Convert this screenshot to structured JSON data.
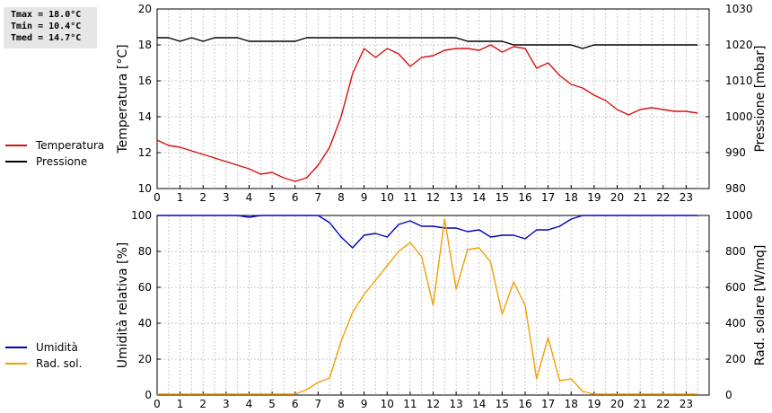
{
  "stats": {
    "tmax": "Tmax = 18.0°C",
    "tmin": "Tmin = 10.4°C",
    "tmed": "Tmed = 14.7°C"
  },
  "colors": {
    "red": "#d81010",
    "black": "#000000",
    "blue": "#0000c0",
    "orange": "#f0a000",
    "grid": "#c8c8c8"
  },
  "chart_data": [
    {
      "type": "line",
      "ylabel": "Temperatura [°C]",
      "y2label": "Pressione [mbar]",
      "xlim": [
        0,
        24
      ],
      "ylim": [
        10,
        20
      ],
      "y2lim": [
        980,
        1030
      ],
      "xticks": [
        0,
        1,
        2,
        3,
        4,
        5,
        6,
        7,
        8,
        9,
        10,
        11,
        12,
        13,
        14,
        15,
        16,
        17,
        18,
        19,
        20,
        21,
        22,
        23
      ],
      "yticks": [
        10,
        12,
        14,
        16,
        18,
        20
      ],
      "y2ticks": [
        980,
        990,
        1000,
        1010,
        1020,
        1030
      ],
      "grid": true,
      "legend": "left",
      "series": [
        {
          "name": "Temperatura",
          "color": "#d81010",
          "axis": "left",
          "x": [
            0,
            0.5,
            1,
            1.5,
            2,
            2.5,
            3,
            3.5,
            4,
            4.5,
            5,
            5.5,
            6,
            6.5,
            7,
            7.5,
            8,
            8.5,
            9,
            9.5,
            10,
            10.5,
            11,
            11.5,
            12,
            12.5,
            13,
            13.5,
            14,
            14.5,
            15,
            15.5,
            16,
            16.5,
            17,
            17.5,
            18,
            18.5,
            19,
            19.5,
            20,
            20.5,
            21,
            21.5,
            22,
            22.5,
            23,
            23.5
          ],
          "y": [
            12.7,
            12.4,
            12.3,
            12.1,
            11.9,
            11.7,
            11.5,
            11.3,
            11.1,
            10.8,
            10.9,
            10.6,
            10.4,
            10.6,
            11.3,
            12.3,
            14.0,
            16.4,
            17.8,
            17.3,
            17.8,
            17.5,
            16.8,
            17.3,
            17.4,
            17.7,
            17.8,
            17.8,
            17.7,
            18.0,
            17.6,
            17.9,
            17.8,
            16.7,
            17.0,
            16.3,
            15.8,
            15.6,
            15.2,
            14.9,
            14.4,
            14.1,
            14.4,
            14.5,
            14.4,
            14.3,
            14.3,
            14.2
          ]
        },
        {
          "name": "Pressione",
          "color": "#000000",
          "axis": "right",
          "x": [
            0,
            0.5,
            1,
            1.5,
            2,
            2.5,
            3,
            3.5,
            4,
            4.5,
            5,
            5.5,
            6,
            6.5,
            7,
            7.5,
            8,
            8.5,
            9,
            9.5,
            10,
            10.5,
            11,
            11.5,
            12,
            12.5,
            13,
            13.5,
            14,
            14.5,
            15,
            15.5,
            16,
            16.5,
            17,
            17.5,
            18,
            18.5,
            19,
            19.5,
            20,
            20.5,
            21,
            21.5,
            22,
            22.5,
            23,
            23.5
          ],
          "y": [
            1022,
            1022,
            1021,
            1022,
            1021,
            1022,
            1022,
            1022,
            1021,
            1021,
            1021,
            1021,
            1021,
            1022,
            1022,
            1022,
            1022,
            1022,
            1022,
            1022,
            1022,
            1022,
            1022,
            1022,
            1022,
            1022,
            1022,
            1021,
            1021,
            1021,
            1021,
            1020,
            1020,
            1020,
            1020,
            1020,
            1020,
            1019,
            1020,
            1020,
            1020,
            1020,
            1020,
            1020,
            1020,
            1020,
            1020,
            1020
          ]
        }
      ]
    },
    {
      "type": "line",
      "ylabel": "Umidità relativa [%]",
      "y2label": "Rad. solare [W/mq]",
      "xlim": [
        0,
        24
      ],
      "ylim": [
        0,
        100
      ],
      "y2lim": [
        0,
        1000
      ],
      "xticks": [
        0,
        1,
        2,
        3,
        4,
        5,
        6,
        7,
        8,
        9,
        10,
        11,
        12,
        13,
        14,
        15,
        16,
        17,
        18,
        19,
        20,
        21,
        22,
        23
      ],
      "yticks": [
        0,
        20,
        40,
        60,
        80,
        100
      ],
      "y2ticks": [
        0,
        200,
        400,
        600,
        800,
        1000
      ],
      "grid": true,
      "legend": "left",
      "series": [
        {
          "name": "Umidità",
          "color": "#0000c0",
          "axis": "left",
          "x": [
            0,
            0.5,
            1,
            1.5,
            2,
            2.5,
            3,
            3.5,
            4,
            4.5,
            5,
            5.5,
            6,
            6.5,
            7,
            7.5,
            8,
            8.5,
            9,
            9.5,
            10,
            10.5,
            11,
            11.5,
            12,
            12.5,
            13,
            13.5,
            14,
            14.5,
            15,
            15.5,
            16,
            16.5,
            17,
            17.5,
            18,
            18.5,
            19,
            19.5,
            20,
            20.5,
            21,
            21.5,
            22,
            22.5,
            23,
            23.5
          ],
          "y": [
            100,
            100,
            100,
            100,
            100,
            100,
            100,
            100,
            99,
            100,
            100,
            100,
            100,
            100,
            100,
            96,
            88,
            82,
            89,
            90,
            88,
            95,
            97,
            94,
            94,
            93,
            93,
            91,
            92,
            88,
            89,
            89,
            87,
            92,
            92,
            94,
            98,
            100,
            100,
            100,
            100,
            100,
            100,
            100,
            100,
            100,
            100,
            100
          ]
        },
        {
          "name": "Rad. sol.",
          "color": "#f0a000",
          "axis": "right",
          "x": [
            0,
            0.5,
            1,
            1.5,
            2,
            2.5,
            3,
            3.5,
            4,
            4.5,
            5,
            5.5,
            6,
            6.5,
            7,
            7.5,
            8,
            8.5,
            9,
            9.5,
            10,
            10.5,
            11,
            11.5,
            12,
            12.5,
            13,
            13.5,
            14,
            14.5,
            15,
            15.5,
            16,
            16.5,
            17,
            17.5,
            18,
            18.5,
            19,
            19.5,
            20,
            20.5,
            21,
            21.5,
            22,
            22.5,
            23,
            23.5
          ],
          "y": [
            5,
            5,
            5,
            5,
            5,
            5,
            5,
            5,
            5,
            5,
            5,
            5,
            5,
            30,
            70,
            95,
            300,
            460,
            560,
            640,
            720,
            800,
            850,
            770,
            500,
            980,
            590,
            810,
            820,
            740,
            450,
            630,
            500,
            90,
            320,
            80,
            90,
            20,
            5,
            5,
            5,
            5,
            5,
            5,
            5,
            5,
            5,
            5
          ]
        }
      ]
    }
  ]
}
